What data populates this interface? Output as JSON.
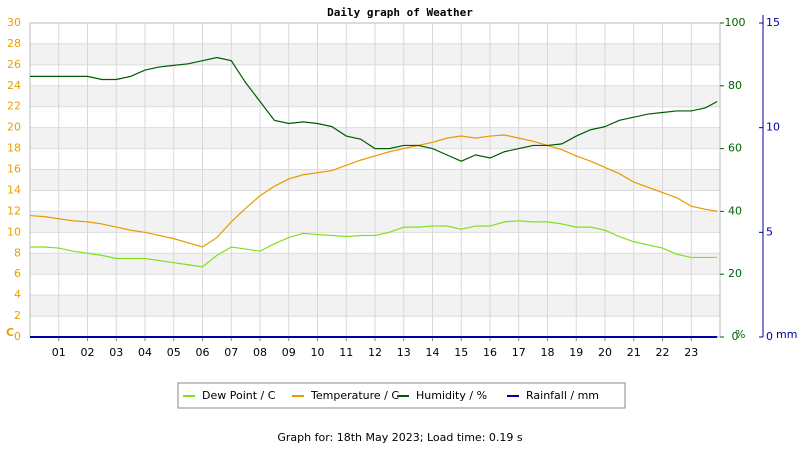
{
  "chart_data": {
    "type": "line",
    "title": "Daily graph of Weather",
    "footer": "Graph for: 18th May 2023; Load time: 0.19 s",
    "ylabel": "C",
    "y2label": "%",
    "y3label": "mm",
    "x": [
      0,
      0.5,
      1,
      1.5,
      2,
      2.5,
      3,
      3.5,
      4,
      4.5,
      5,
      5.5,
      6,
      6.5,
      7,
      7.5,
      8,
      8.5,
      9,
      9.5,
      10,
      10.5,
      11,
      11.5,
      12,
      12.5,
      13,
      13.5,
      14,
      14.5,
      15,
      15.5,
      16,
      16.5,
      17,
      17.5,
      18,
      18.5,
      19,
      19.5,
      20,
      20.5,
      21,
      21.5,
      22,
      22.5,
      23,
      23.5,
      23.9
    ],
    "xlim": [
      0,
      24
    ],
    "xticks": [
      {
        "value": 1,
        "label": "01"
      },
      {
        "value": 2,
        "label": "02"
      },
      {
        "value": 3,
        "label": "03"
      },
      {
        "value": 4,
        "label": "04"
      },
      {
        "value": 5,
        "label": "05"
      },
      {
        "value": 6,
        "label": "06"
      },
      {
        "value": 7,
        "label": "07"
      },
      {
        "value": 8,
        "label": "08"
      },
      {
        "value": 9,
        "label": "09"
      },
      {
        "value": 10,
        "label": "10"
      },
      {
        "value": 11,
        "label": "11"
      },
      {
        "value": 12,
        "label": "12"
      },
      {
        "value": 13,
        "label": "13"
      },
      {
        "value": 14,
        "label": "14"
      },
      {
        "value": 15,
        "label": "15"
      },
      {
        "value": 16,
        "label": "16"
      },
      {
        "value": 17,
        "label": "17"
      },
      {
        "value": 18,
        "label": "18"
      },
      {
        "value": 19,
        "label": "19"
      },
      {
        "value": 20,
        "label": "20"
      },
      {
        "value": 21,
        "label": "21"
      },
      {
        "value": 22,
        "label": "22"
      },
      {
        "value": 23,
        "label": "23"
      }
    ],
    "ylim": [
      0,
      30
    ],
    "yticks": [
      0,
      2,
      4,
      6,
      8,
      10,
      12,
      14,
      16,
      18,
      20,
      22,
      24,
      26,
      28,
      30
    ],
    "y2lim": [
      0,
      100
    ],
    "y2ticks": [
      0,
      20,
      40,
      60,
      80,
      100
    ],
    "y3lim": [
      0,
      15
    ],
    "y3ticks": [
      0,
      5,
      10,
      15
    ],
    "grid": true,
    "series": [
      {
        "name": "Dew Point / C",
        "color": "#7fe01f",
        "axis": "y",
        "values": [
          8.6,
          8.6,
          8.5,
          8.2,
          8.0,
          7.8,
          7.5,
          7.5,
          7.5,
          7.3,
          7.1,
          6.9,
          6.7,
          7.8,
          8.6,
          8.4,
          8.2,
          8.9,
          9.5,
          9.9,
          9.8,
          9.7,
          9.6,
          9.7,
          9.7,
          10.0,
          10.5,
          10.5,
          10.6,
          10.6,
          10.3,
          10.6,
          10.6,
          11.0,
          11.1,
          11.0,
          11.0,
          10.8,
          10.5,
          10.5,
          10.2,
          9.6,
          9.1,
          8.8,
          8.5,
          7.9,
          7.6,
          7.6,
          7.6
        ]
      },
      {
        "name": "Temperature / C",
        "color": "#e89a00",
        "axis": "y",
        "values": [
          11.6,
          11.5,
          11.3,
          11.1,
          11.0,
          10.8,
          10.5,
          10.2,
          10.0,
          9.7,
          9.4,
          9.0,
          8.6,
          9.5,
          11.0,
          12.3,
          13.5,
          14.4,
          15.1,
          15.5,
          15.7,
          15.9,
          16.4,
          16.9,
          17.3,
          17.7,
          18.0,
          18.3,
          18.6,
          19.0,
          19.2,
          19.0,
          19.2,
          19.3,
          19.0,
          18.7,
          18.3,
          17.9,
          17.3,
          16.8,
          16.2,
          15.6,
          14.8,
          14.3,
          13.8,
          13.3,
          12.5,
          12.2,
          12.0
        ]
      },
      {
        "name": "Humidity / %",
        "color": "#005a00",
        "axis": "y2",
        "values": [
          83,
          83,
          83,
          83,
          83,
          82,
          82,
          83,
          85,
          86,
          86.5,
          87,
          88,
          89,
          88,
          81,
          75,
          69,
          68,
          68.5,
          68,
          67,
          64,
          63,
          60,
          60,
          61,
          61,
          60,
          58,
          56,
          58,
          57,
          59,
          60,
          61,
          61,
          61.5,
          64,
          66,
          67,
          69,
          70,
          71,
          71.5,
          72,
          72,
          73,
          75
        ]
      },
      {
        "name": "Rainfall / mm",
        "color": "#0000aa",
        "axis": "y3",
        "values": [
          0,
          0,
          0,
          0,
          0,
          0,
          0,
          0,
          0,
          0,
          0,
          0,
          0,
          0,
          0,
          0,
          0,
          0,
          0,
          0,
          0,
          0,
          0,
          0,
          0,
          0,
          0,
          0,
          0,
          0,
          0,
          0,
          0,
          0,
          0,
          0,
          0,
          0,
          0,
          0,
          0,
          0,
          0,
          0,
          0,
          0,
          0,
          0,
          0
        ]
      }
    ]
  }
}
